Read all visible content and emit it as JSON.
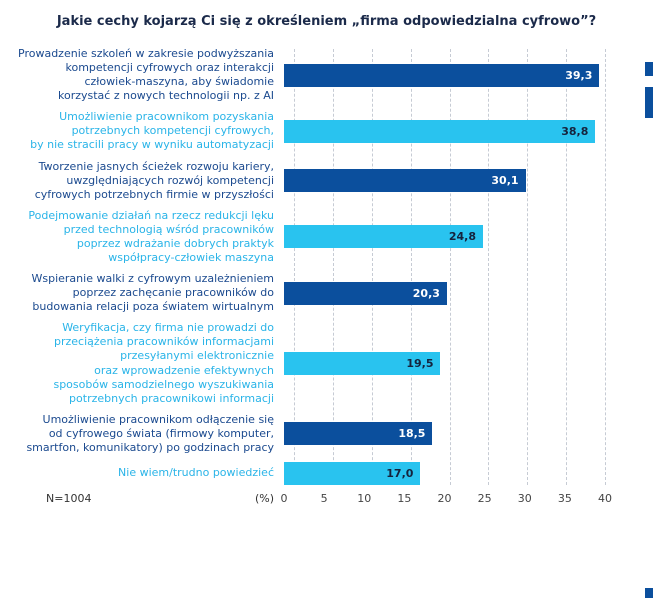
{
  "chart_data": {
    "type": "bar",
    "orientation": "horizontal",
    "title": "Jakie cechy kojarzą Ci się z określeniem „firma odpowiedzialna cyfrowo”?",
    "x_unit": "(%)",
    "footnote": "N=1004",
    "xlim": [
      0,
      40
    ],
    "x_ticks": [
      0,
      5,
      10,
      15,
      20,
      25,
      30,
      35,
      40
    ],
    "grid": "dashed-vertical",
    "colors": {
      "dark": "#0b4f9d",
      "cyan": "#29c3ef",
      "label_dark": "#1b4a8f",
      "label_cyan": "#2ab4e8",
      "value_on_dark": "#ffffff",
      "value_on_cyan": "#15233d",
      "edge_decoration": "#0b4f9d"
    },
    "bars": [
      {
        "label_lines": [
          "Prowadzenie szkoleń w zakresie podwyższania",
          "kompetencji cyfrowych oraz interakcji",
          "człowiek-maszyna, aby świadomie",
          "korzystać z nowych technologii np. z AI"
        ],
        "value": 39.3,
        "value_label": "39,3",
        "color": "dark"
      },
      {
        "label_lines": [
          "Umożliwienie pracownikom pozyskania",
          "potrzebnych kompetencji cyfrowych,",
          "by nie stracili pracy w wyniku automatyzacji"
        ],
        "value": 38.8,
        "value_label": "38,8",
        "color": "cyan"
      },
      {
        "label_lines": [
          "Tworzenie jasnych ścieżek rozwoju kariery,",
          "uwzględniających rozwój kompetencji",
          "cyfrowych potrzebnych firmie w przyszłości"
        ],
        "value": 30.1,
        "value_label": "30,1",
        "color": "dark"
      },
      {
        "label_lines": [
          "Podejmowanie działań na rzecz redukcji lęku",
          "przed technologią wśród pracowników",
          "poprzez wdrażanie dobrych praktyk",
          "współpracy-człowiek maszyna"
        ],
        "value": 24.8,
        "value_label": "24,8",
        "color": "cyan"
      },
      {
        "label_lines": [
          "Wspieranie walki z cyfrowym uzależnieniem",
          "poprzez zachęcanie pracowników do",
          "budowania relacji poza światem wirtualnym"
        ],
        "value": 20.3,
        "value_label": "20,3",
        "color": "dark"
      },
      {
        "label_lines": [
          "Weryfikacja, czy firma nie prowadzi do",
          "przeciążenia pracowników informacjami",
          "przesyłanymi elektronicznie",
          "oraz wprowadzenie efektywnych",
          "sposobów samodzielnego wyszukiwania",
          "potrzebnych pracownikowi informacji"
        ],
        "value": 19.5,
        "value_label": "19,5",
        "color": "cyan"
      },
      {
        "label_lines": [
          "Umożliwienie pracownikom odłączenie się",
          "od cyfrowego świata (firmowy komputer,",
          "smartfon, komunikatory) po godzinach pracy"
        ],
        "value": 18.5,
        "value_label": "18,5",
        "color": "dark"
      },
      {
        "label_lines": [
          "Nie wiem/trudno powiedzieć"
        ],
        "value": 17.0,
        "value_label": "17,0",
        "color": "cyan"
      }
    ]
  }
}
